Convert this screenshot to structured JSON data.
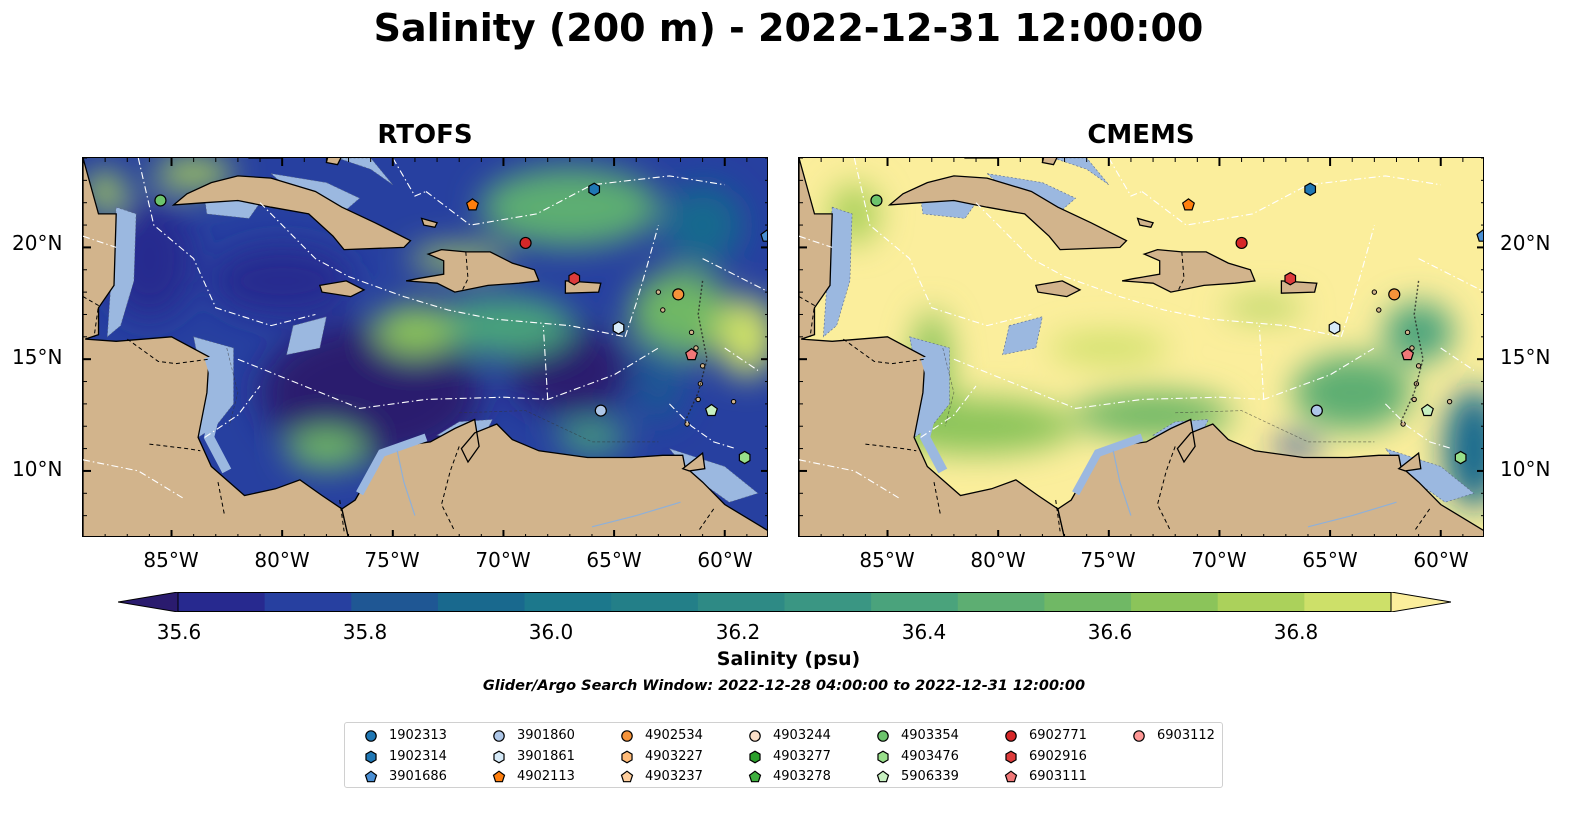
{
  "title": "Salinity (200 m) - 2022-12-31 12:00:00",
  "panels": [
    {
      "name": "RTOFS",
      "variant": "rtofs"
    },
    {
      "name": "CMEMS",
      "variant": "cmems"
    }
  ],
  "x_tick_labels": [
    "85°W",
    "80°W",
    "75°W",
    "70°W",
    "65°W",
    "60°W"
  ],
  "y_tick_labels": [
    "20°N",
    "15°N",
    "10°N"
  ],
  "map_extent": {
    "lon": [
      -89.0,
      -58.0
    ],
    "lat": [
      7.0,
      24.0
    ]
  },
  "colorbar": {
    "label": "Salinity (psu)",
    "tick_labels": [
      "35.6",
      "35.8",
      "36.0",
      "36.2",
      "36.4",
      "36.6",
      "36.8"
    ],
    "range": [
      35.5,
      37.0
    ],
    "colors": [
      "#2a1b6e",
      "#27298f",
      "#2740a0",
      "#1f5794",
      "#19698e",
      "#1c788c",
      "#237f88",
      "#2e8a85",
      "#3a9683",
      "#4aa37c",
      "#5dae72",
      "#70b865",
      "#8bc45a",
      "#abd15b",
      "#cde069",
      "#fbee9c"
    ]
  },
  "search_window": "Glider/Argo Search Window: 2022-12-28 04:00:00 to 2022-12-31 12:00:00",
  "legend": [
    {
      "id": "1902313",
      "marker": "circle",
      "color": "#1f77b4"
    },
    {
      "id": "1902314",
      "marker": "hexagon",
      "color": "#1f77b4"
    },
    {
      "id": "3901686",
      "marker": "pentagon",
      "color": "#4a8fd4"
    },
    {
      "id": "3901860",
      "marker": "circle",
      "color": "#aec7e8"
    },
    {
      "id": "3901861",
      "marker": "hexagon",
      "color": "#d6eaf8"
    },
    {
      "id": "4902113",
      "marker": "pentagon",
      "color": "#ff7f0e"
    },
    {
      "id": "4902534",
      "marker": "circle",
      "color": "#f5933a"
    },
    {
      "id": "4903227",
      "marker": "hexagon",
      "color": "#ffbb78"
    },
    {
      "id": "4903237",
      "marker": "pentagon",
      "color": "#ffcf9e"
    },
    {
      "id": "4903244",
      "marker": "circle",
      "color": "#fde0c8"
    },
    {
      "id": "4903277",
      "marker": "hexagon",
      "color": "#2ca02c"
    },
    {
      "id": "4903278",
      "marker": "pentagon",
      "color": "#3fb03f"
    },
    {
      "id": "4903354",
      "marker": "circle",
      "color": "#6cc36c"
    },
    {
      "id": "4903476",
      "marker": "hexagon",
      "color": "#98df8a"
    },
    {
      "id": "5906339",
      "marker": "pentagon",
      "color": "#c7f0c0"
    },
    {
      "id": "6902771",
      "marker": "circle",
      "color": "#d62728"
    },
    {
      "id": "6902916",
      "marker": "hexagon",
      "color": "#dd3b3b"
    },
    {
      "id": "6903111",
      "marker": "pentagon",
      "color": "#f07878"
    },
    {
      "id": "6903112",
      "marker": "circle",
      "color": "#ff9896"
    }
  ],
  "observations": [
    {
      "id": "4903354",
      "lon": -85.5,
      "lat": 22.1
    },
    {
      "id": "4902113",
      "lon": -71.4,
      "lat": 21.9
    },
    {
      "id": "1902314",
      "lon": -65.9,
      "lat": 22.6
    },
    {
      "id": "6902771",
      "lon": -69.0,
      "lat": 20.2
    },
    {
      "id": "6902916",
      "lon": -66.8,
      "lat": 18.6
    },
    {
      "id": "4902534",
      "lon": -62.1,
      "lat": 17.9
    },
    {
      "id": "3901861",
      "lon": -64.8,
      "lat": 16.4
    },
    {
      "id": "6903111",
      "lon": -61.5,
      "lat": 15.2
    },
    {
      "id": "3901860",
      "lon": -65.6,
      "lat": 12.7
    },
    {
      "id": "5906339",
      "lon": -60.6,
      "lat": 12.7
    },
    {
      "id": "4903476",
      "lon": -59.1,
      "lat": 10.6
    },
    {
      "id": "3901686",
      "lon": -58.1,
      "lat": 20.5
    }
  ],
  "colors": {
    "land": "#d2b48c",
    "shallow": "#9bb8e0",
    "coastline": "#000000",
    "eez": "#ffffff"
  }
}
